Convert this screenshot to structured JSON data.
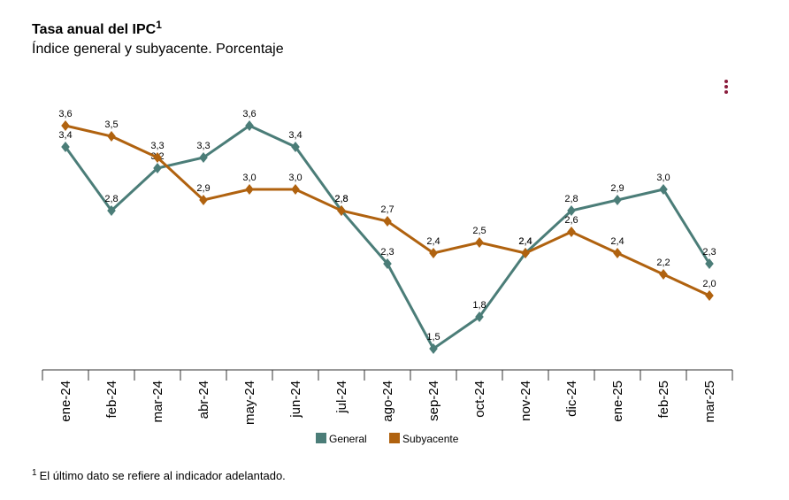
{
  "chart_data": {
    "type": "line",
    "title": "Tasa anual del IPC",
    "title_footnote_mark": "1",
    "subtitle": "Índice general y subyacente. Porcentaje",
    "categories": [
      "ene-24",
      "feb-24",
      "mar-24",
      "abr-24",
      "may-24",
      "jun-24",
      "jul-24",
      "ago-24",
      "sep-24",
      "oct-24",
      "nov-24",
      "dic-24",
      "ene-25",
      "feb-25",
      "mar-25"
    ],
    "ylim": [
      1.3,
      4.0
    ],
    "series": [
      {
        "name": "General",
        "color": "#4b7d78",
        "values": [
          3.4,
          2.8,
          3.2,
          3.3,
          3.6,
          3.4,
          2.8,
          2.3,
          1.5,
          1.8,
          2.4,
          2.8,
          2.9,
          3.0,
          2.3
        ],
        "value_labels": [
          "3,4",
          "2,8",
          "3,2",
          "3,3",
          "3,6",
          "3,4",
          "2,8",
          "2,3",
          "1,5",
          "1,8",
          "2,4",
          "2,8",
          "2,9",
          "3,0",
          "2,3"
        ]
      },
      {
        "name": "Subyacente",
        "color": "#b0620f",
        "values": [
          3.6,
          3.5,
          3.3,
          2.9,
          3.0,
          3.0,
          2.8,
          2.7,
          2.4,
          2.5,
          2.4,
          2.6,
          2.4,
          2.2,
          2.0
        ],
        "value_labels": [
          "3,6",
          "3,5",
          "3,3",
          "2,9",
          "3,0",
          "3,0",
          "2,8",
          "2,7",
          "2,4",
          "2,5",
          "2,4",
          "2,6",
          "2,4",
          "2,2",
          "2,0"
        ]
      }
    ],
    "legend": "bottom",
    "footnote": {
      "mark": "1",
      "text": "El último dato se refiere al indicador adelantado."
    }
  }
}
